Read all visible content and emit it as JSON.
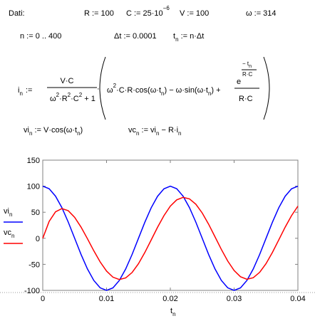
{
  "worksheet": {
    "line1": [
      "Dati:",
      "R := 100",
      "C := 25·10",
      "−6",
      "V := 100",
      "ω := 314"
    ],
    "line2": [
      "n := 0 .. 400",
      "Δt := 0.0001",
      "t",
      "n",
      " := n·Δt"
    ],
    "formula": [
      "i",
      "n",
      ":=",
      "V·C",
      "ω",
      "2",
      "·R",
      "2",
      "·C",
      "2",
      " + 1",
      "·",
      "ω",
      "2",
      "·C·R·cos(ω·t",
      "n",
      ") − ω·sin(ω·t",
      "n",
      ")  +",
      "e",
      "− t",
      "n",
      "R·C",
      "R·C"
    ],
    "line4": [
      "vi",
      "n",
      " := V·cos(ω·t",
      "n",
      ")",
      "vc",
      "n",
      " := vi",
      "n",
      " − R·i",
      "n"
    ]
  },
  "chart_data": {
    "type": "line",
    "x": [
      0,
      0.001,
      0.002,
      0.003,
      0.004,
      0.005,
      0.006,
      0.007,
      0.008,
      0.009,
      0.01,
      0.011,
      0.012,
      0.013,
      0.014,
      0.015,
      0.016,
      0.017,
      0.018,
      0.019,
      0.02,
      0.021,
      0.022,
      0.023,
      0.024,
      0.025,
      0.026,
      0.027,
      0.028,
      0.029,
      0.03,
      0.031,
      0.032,
      0.033,
      0.034,
      0.035,
      0.036,
      0.037,
      0.038,
      0.039,
      0.04
    ],
    "series": [
      {
        "name": "vi",
        "name_subscript": "n",
        "color": "#0000ff",
        "values": [
          100,
          95.1,
          80.9,
          58.8,
          31.0,
          0.1,
          -30.9,
          -58.7,
          -80.8,
          -95.1,
          -100,
          -95.2,
          -81.0,
          -58.9,
          -31.2,
          -0.2,
          30.7,
          58.6,
          80.7,
          95.0,
          100,
          95.1,
          80.9,
          58.8,
          31.0,
          0.1,
          -30.9,
          -58.7,
          -80.8,
          -95.1,
          -100,
          -95.2,
          -81.0,
          -58.9,
          -31.2,
          -0.2,
          30.7,
          58.6,
          80.7,
          95.0,
          100
        ]
      },
      {
        "name": "vc",
        "name_subscript": "n",
        "color": "#ff0000",
        "values": [
          0,
          32.4,
          50.8,
          57.0,
          52.9,
          40.3,
          21.5,
          -0.7,
          -23.9,
          -45.4,
          -62.9,
          -74.6,
          -79.1,
          -76.0,
          -65.7,
          -48.9,
          -27.3,
          -3.2,
          21.2,
          43.5,
          61.7,
          73.8,
          78.6,
          75.7,
          65.4,
          48.6,
          27.1,
          3.0,
          -21.4,
          -43.7,
          -61.8,
          -73.8,
          -78.6,
          -75.7,
          -65.4,
          -48.7,
          -27.2,
          -3.1,
          21.3,
          43.5,
          61.7
        ]
      }
    ],
    "xlabel": "t",
    "xlabel_subscript": "n",
    "xlim": [
      0,
      0.04
    ],
    "xticks": [
      0,
      0.01,
      0.02,
      0.03,
      0.04
    ],
    "ylim": [
      -100,
      150
    ],
    "yticks": [
      -100,
      -50,
      0,
      50,
      100,
      150
    ]
  }
}
